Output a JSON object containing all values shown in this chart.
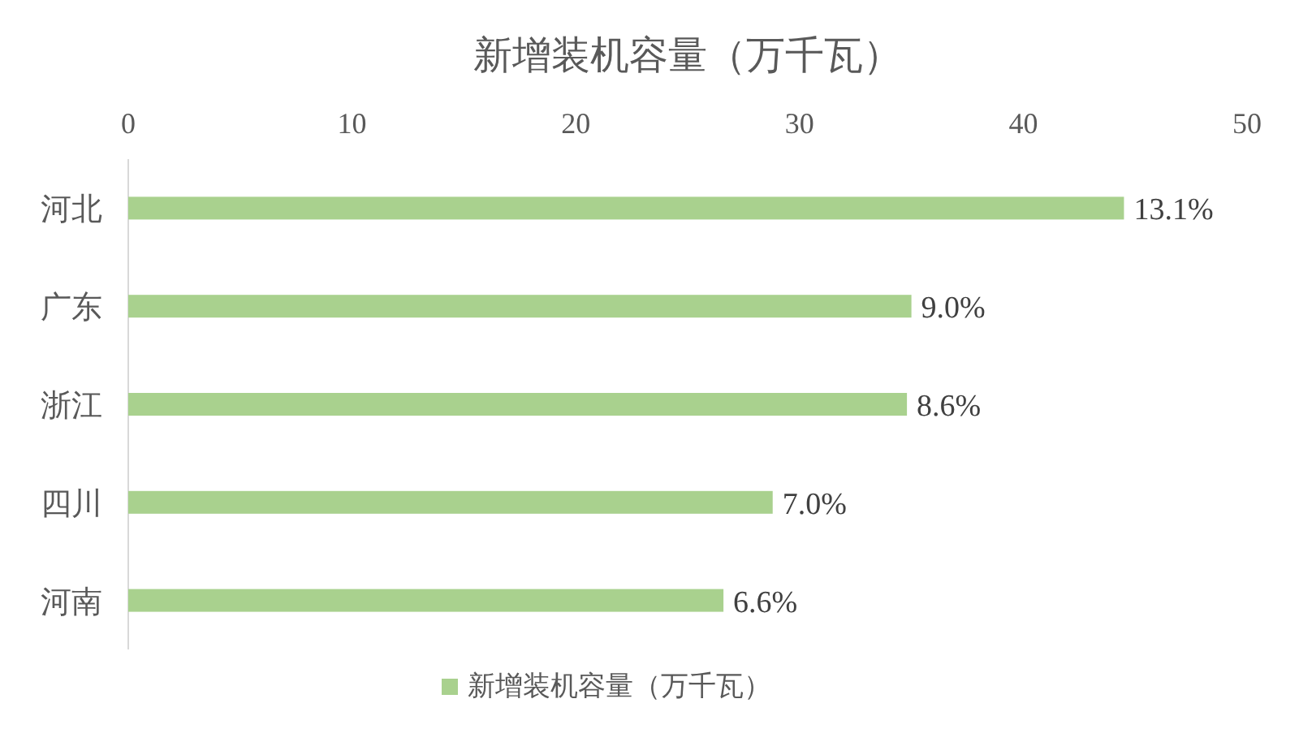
{
  "chart_data": {
    "type": "bar",
    "orientation": "horizontal",
    "title": "新增装机容量（万千瓦）",
    "categories": [
      "河北",
      "广东",
      "浙江",
      "四川",
      "河南"
    ],
    "series": [
      {
        "name": "新增装机容量（万千瓦）",
        "color": "#a9d18e",
        "values": [
          44.5,
          35.0,
          34.8,
          28.8,
          26.6
        ]
      }
    ],
    "annotations": [
      {
        "text": "13.1%",
        "x": 44.5,
        "y": "河北"
      },
      {
        "text": "9.0%",
        "x": 35.0,
        "y": "广东"
      },
      {
        "text": "8.6%",
        "x": 34.8,
        "y": "浙江"
      },
      {
        "text": "7.0%",
        "x": 28.8,
        "y": "四川"
      },
      {
        "text": "6.6%",
        "x": 26.6,
        "y": "河南"
      }
    ],
    "xlim": [
      0,
      50
    ],
    "xticks": [
      0,
      10,
      20,
      30,
      40,
      50
    ],
    "legend": "bottom"
  }
}
